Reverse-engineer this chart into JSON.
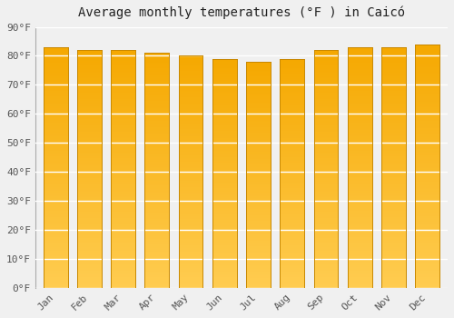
{
  "title": "Average monthly temperatures (°F ) in Caicó",
  "months": [
    "Jan",
    "Feb",
    "Mar",
    "Apr",
    "May",
    "Jun",
    "Jul",
    "Aug",
    "Sep",
    "Oct",
    "Nov",
    "Dec"
  ],
  "values": [
    83,
    82,
    82,
    81,
    80,
    79,
    78,
    79,
    82,
    83,
    83,
    84
  ],
  "ylim": [
    0,
    90
  ],
  "yticks": [
    0,
    10,
    20,
    30,
    40,
    50,
    60,
    70,
    80,
    90
  ],
  "bar_color_top": "#F5A800",
  "bar_color_bottom": "#FFCC50",
  "bar_border_color": "#C88800",
  "background_color": "#f0f0f0",
  "grid_color": "#ffffff",
  "title_fontsize": 10,
  "tick_fontsize": 8,
  "bar_width": 0.72
}
